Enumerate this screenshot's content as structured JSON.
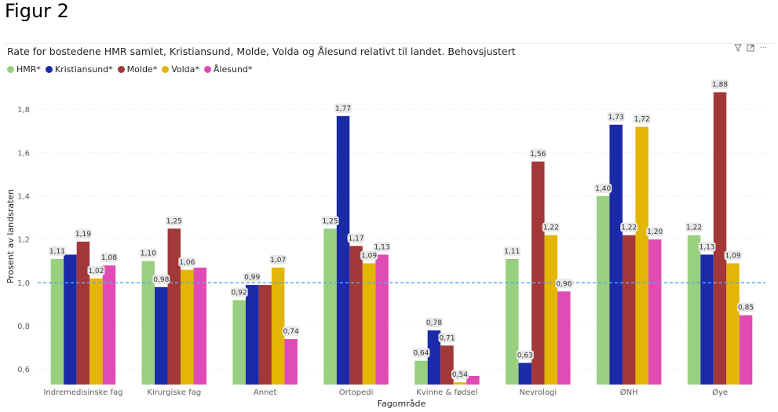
{
  "figure_label": "Figur 2",
  "header_icons": {
    "filter": "filter-icon",
    "focus": "focus-mode-icon",
    "more": "more-options-icon"
  },
  "chart_data": {
    "type": "bar",
    "title": "Rate for bostedene HMR samlet, Kristiansund, Molde, Volda og Ålesund relativt til landet. Behovsjustert",
    "xlabel": "Fagområde",
    "ylabel": "Prosent av landsraten",
    "ylim": [
      0.53,
      1.9
    ],
    "yticks": [
      "0,6",
      "0,8",
      "1,0",
      "1,2",
      "1,4",
      "1,6",
      "1,8"
    ],
    "reference_line": {
      "value": 1.0,
      "color": "#5aa9e6",
      "style": "dashed"
    },
    "categories": [
      "Indremedisinske fag",
      "Kirurgiske fag",
      "Annet",
      "Ortopedi",
      "Kvinne & fødsel",
      "Nevrologi",
      "ØNH",
      "Øye"
    ],
    "series": [
      {
        "name": "HMR*",
        "color": "#98d07f",
        "values": [
          1.11,
          1.1,
          0.92,
          1.25,
          0.64,
          1.11,
          1.4,
          1.22
        ],
        "labels": [
          "1,11",
          "1,10",
          "0,92",
          "1,25",
          "0,64",
          "1,11",
          "1,40",
          "1,22"
        ]
      },
      {
        "name": "Kristiansund*",
        "color": "#1a2aa8",
        "values": [
          1.13,
          0.98,
          0.99,
          1.77,
          0.78,
          0.63,
          1.73,
          1.13
        ],
        "labels": [
          "",
          "0,98",
          "0,99",
          "1,77",
          "0,78",
          "0,63",
          "1,73",
          "1,13"
        ]
      },
      {
        "name": "Molde*",
        "color": "#a33838",
        "values": [
          1.19,
          1.25,
          0.99,
          1.17,
          0.71,
          1.56,
          1.22,
          1.88
        ],
        "labels": [
          "1,19",
          "1,25",
          "",
          "1,17",
          "0,71",
          "1,56",
          "1,22",
          "1,88"
        ]
      },
      {
        "name": "Volda*",
        "color": "#e3b505",
        "values": [
          1.02,
          1.06,
          1.07,
          1.09,
          0.54,
          1.22,
          1.72,
          1.09
        ],
        "labels": [
          "1,02",
          "1,06",
          "1,07",
          "1,09",
          "0,54",
          "1,22",
          "1,72",
          "1,09"
        ]
      },
      {
        "name": "Ålesund*",
        "color": "#e04cb3",
        "values": [
          1.08,
          1.07,
          0.74,
          1.13,
          0.57,
          0.96,
          1.2,
          0.85
        ],
        "labels": [
          "1,08",
          "",
          "0,74",
          "1,13",
          "",
          "0,96",
          "1,20",
          "0,85"
        ]
      }
    ]
  }
}
